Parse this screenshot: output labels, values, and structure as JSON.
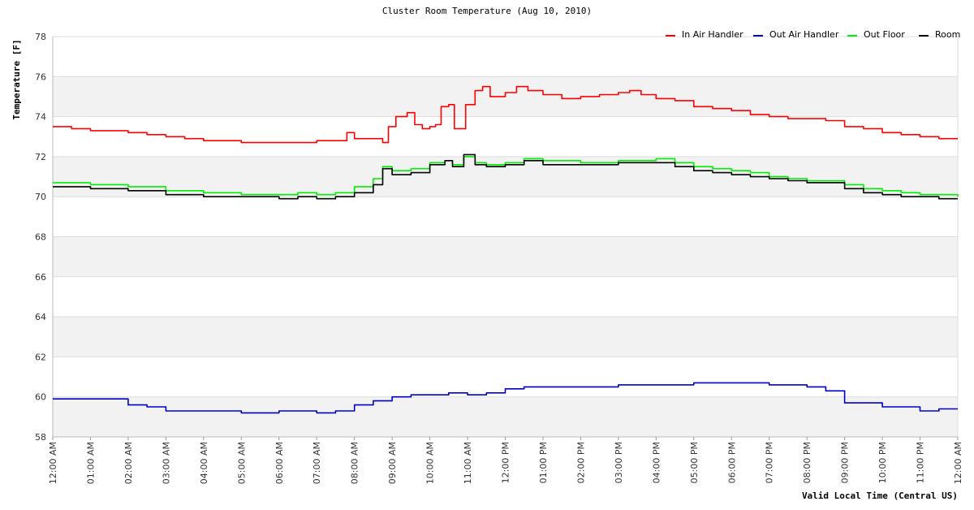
{
  "chart_data": {
    "type": "line",
    "title": "Cluster Room Temperature (Aug 10, 2010)",
    "xlabel": "Valid Local Time (Central US)",
    "ylabel": "Temperature [F]",
    "ylim": [
      58,
      78
    ],
    "yticks": [
      58,
      60,
      62,
      64,
      66,
      68,
      70,
      72,
      74,
      76,
      78
    ],
    "xlim": [
      0,
      24
    ],
    "xticks": [
      {
        "hour": 0,
        "label": "12:00 AM"
      },
      {
        "hour": 1,
        "label": "01:00 AM"
      },
      {
        "hour": 2,
        "label": "02:00 AM"
      },
      {
        "hour": 3,
        "label": "03:00 AM"
      },
      {
        "hour": 4,
        "label": "04:00 AM"
      },
      {
        "hour": 5,
        "label": "05:00 AM"
      },
      {
        "hour": 6,
        "label": "06:00 AM"
      },
      {
        "hour": 7,
        "label": "07:00 AM"
      },
      {
        "hour": 8,
        "label": "08:00 AM"
      },
      {
        "hour": 9,
        "label": "09:00 AM"
      },
      {
        "hour": 10,
        "label": "10:00 AM"
      },
      {
        "hour": 11,
        "label": "11:00 AM"
      },
      {
        "hour": 12,
        "label": "12:00 PM"
      },
      {
        "hour": 13,
        "label": "01:00 PM"
      },
      {
        "hour": 14,
        "label": "02:00 PM"
      },
      {
        "hour": 15,
        "label": "03:00 PM"
      },
      {
        "hour": 16,
        "label": "04:00 PM"
      },
      {
        "hour": 17,
        "label": "05:00 PM"
      },
      {
        "hour": 18,
        "label": "06:00 PM"
      },
      {
        "hour": 19,
        "label": "07:00 PM"
      },
      {
        "hour": 20,
        "label": "08:00 PM"
      },
      {
        "hour": 21,
        "label": "09:00 PM"
      },
      {
        "hour": 22,
        "label": "10:00 PM"
      },
      {
        "hour": 23,
        "label": "11:00 PM"
      },
      {
        "hour": 24,
        "label": "12:00 AM"
      }
    ],
    "legend_position": "top-right",
    "grid": true,
    "series": [
      {
        "name": "In Air Handler",
        "color": "#ff0000",
        "points": [
          [
            0,
            73.5
          ],
          [
            0.5,
            73.4
          ],
          [
            1,
            73.3
          ],
          [
            1.5,
            73.3
          ],
          [
            2,
            73.2
          ],
          [
            2.5,
            73.1
          ],
          [
            3,
            73.0
          ],
          [
            3.5,
            72.9
          ],
          [
            4,
            72.8
          ],
          [
            4.5,
            72.8
          ],
          [
            5,
            72.7
          ],
          [
            5.5,
            72.7
          ],
          [
            6,
            72.7
          ],
          [
            6.5,
            72.7
          ],
          [
            7,
            72.8
          ],
          [
            7.5,
            72.8
          ],
          [
            7.8,
            73.2
          ],
          [
            8,
            72.9
          ],
          [
            8.5,
            72.9
          ],
          [
            8.75,
            72.7
          ],
          [
            8.9,
            73.5
          ],
          [
            9.1,
            74.0
          ],
          [
            9.4,
            74.2
          ],
          [
            9.6,
            73.6
          ],
          [
            9.8,
            73.4
          ],
          [
            10,
            73.5
          ],
          [
            10.15,
            73.6
          ],
          [
            10.3,
            74.5
          ],
          [
            10.5,
            74.6
          ],
          [
            10.65,
            73.4
          ],
          [
            10.8,
            73.4
          ],
          [
            10.95,
            74.6
          ],
          [
            11.2,
            75.3
          ],
          [
            11.4,
            75.5
          ],
          [
            11.6,
            75.0
          ],
          [
            12,
            75.2
          ],
          [
            12.3,
            75.5
          ],
          [
            12.6,
            75.3
          ],
          [
            13,
            75.1
          ],
          [
            13.5,
            74.9
          ],
          [
            14,
            75.0
          ],
          [
            14.5,
            75.1
          ],
          [
            15,
            75.2
          ],
          [
            15.3,
            75.3
          ],
          [
            15.6,
            75.1
          ],
          [
            16,
            74.9
          ],
          [
            16.5,
            74.8
          ],
          [
            17,
            74.5
          ],
          [
            17.5,
            74.4
          ],
          [
            18,
            74.3
          ],
          [
            18.5,
            74.1
          ],
          [
            19,
            74.0
          ],
          [
            19.5,
            73.9
          ],
          [
            20,
            73.9
          ],
          [
            20.5,
            73.8
          ],
          [
            21,
            73.5
          ],
          [
            21.5,
            73.4
          ],
          [
            22,
            73.2
          ],
          [
            22.5,
            73.1
          ],
          [
            23,
            73.0
          ],
          [
            23.5,
            72.9
          ],
          [
            24,
            72.9
          ]
        ]
      },
      {
        "name": "Out Air Handler",
        "color": "#0000cc",
        "points": [
          [
            0,
            59.9
          ],
          [
            1,
            59.9
          ],
          [
            1.5,
            59.9
          ],
          [
            2,
            59.6
          ],
          [
            2.5,
            59.5
          ],
          [
            3,
            59.3
          ],
          [
            4,
            59.3
          ],
          [
            5,
            59.2
          ],
          [
            6,
            59.3
          ],
          [
            7,
            59.2
          ],
          [
            7.5,
            59.3
          ],
          [
            8,
            59.6
          ],
          [
            8.5,
            59.8
          ],
          [
            9,
            60.0
          ],
          [
            9.5,
            60.1
          ],
          [
            10,
            60.1
          ],
          [
            10.5,
            60.2
          ],
          [
            11,
            60.1
          ],
          [
            11.5,
            60.2
          ],
          [
            12,
            60.4
          ],
          [
            12.5,
            60.5
          ],
          [
            13,
            60.5
          ],
          [
            13.5,
            60.5
          ],
          [
            14,
            60.5
          ],
          [
            14.5,
            60.5
          ],
          [
            15,
            60.6
          ],
          [
            16,
            60.6
          ],
          [
            17,
            60.7
          ],
          [
            18,
            60.7
          ],
          [
            19,
            60.6
          ],
          [
            20,
            60.5
          ],
          [
            20.5,
            60.3
          ],
          [
            21,
            59.7
          ],
          [
            21.5,
            59.7
          ],
          [
            22,
            59.5
          ],
          [
            22.5,
            59.5
          ],
          [
            23,
            59.3
          ],
          [
            23.5,
            59.4
          ],
          [
            24,
            59.4
          ]
        ]
      },
      {
        "name": "Out Floor",
        "color": "#00ee00",
        "points": [
          [
            0,
            70.7
          ],
          [
            1,
            70.6
          ],
          [
            2,
            70.5
          ],
          [
            3,
            70.3
          ],
          [
            4,
            70.2
          ],
          [
            5,
            70.1
          ],
          [
            6,
            70.1
          ],
          [
            6.5,
            70.2
          ],
          [
            7,
            70.1
          ],
          [
            7.5,
            70.2
          ],
          [
            8,
            70.5
          ],
          [
            8.5,
            70.9
          ],
          [
            8.75,
            71.5
          ],
          [
            9,
            71.3
          ],
          [
            9.5,
            71.4
          ],
          [
            10,
            71.7
          ],
          [
            10.4,
            71.8
          ],
          [
            10.6,
            71.6
          ],
          [
            10.9,
            72.0
          ],
          [
            11.2,
            71.7
          ],
          [
            11.5,
            71.6
          ],
          [
            12,
            71.7
          ],
          [
            12.5,
            71.9
          ],
          [
            13,
            71.8
          ],
          [
            14,
            71.7
          ],
          [
            15,
            71.8
          ],
          [
            16,
            71.9
          ],
          [
            16.5,
            71.7
          ],
          [
            17,
            71.5
          ],
          [
            17.5,
            71.4
          ],
          [
            18,
            71.3
          ],
          [
            18.5,
            71.2
          ],
          [
            19,
            71.0
          ],
          [
            19.5,
            70.9
          ],
          [
            20,
            70.8
          ],
          [
            20.5,
            70.8
          ],
          [
            21,
            70.6
          ],
          [
            21.5,
            70.4
          ],
          [
            22,
            70.3
          ],
          [
            22.5,
            70.2
          ],
          [
            23,
            70.1
          ],
          [
            23.5,
            70.1
          ],
          [
            24,
            70.0
          ]
        ]
      },
      {
        "name": "Room",
        "color": "#000000",
        "points": [
          [
            0,
            70.5
          ],
          [
            1,
            70.4
          ],
          [
            2,
            70.3
          ],
          [
            3,
            70.1
          ],
          [
            4,
            70.0
          ],
          [
            5,
            70.0
          ],
          [
            6,
            69.9
          ],
          [
            6.5,
            70.0
          ],
          [
            7,
            69.9
          ],
          [
            7.5,
            70.0
          ],
          [
            8,
            70.2
          ],
          [
            8.5,
            70.6
          ],
          [
            8.75,
            71.4
          ],
          [
            9,
            71.1
          ],
          [
            9.5,
            71.2
          ],
          [
            10,
            71.6
          ],
          [
            10.4,
            71.8
          ],
          [
            10.6,
            71.5
          ],
          [
            10.9,
            72.1
          ],
          [
            11.2,
            71.6
          ],
          [
            11.5,
            71.5
          ],
          [
            12,
            71.6
          ],
          [
            12.5,
            71.8
          ],
          [
            13,
            71.6
          ],
          [
            14,
            71.6
          ],
          [
            15,
            71.7
          ],
          [
            16,
            71.7
          ],
          [
            16.5,
            71.5
          ],
          [
            17,
            71.3
          ],
          [
            17.5,
            71.2
          ],
          [
            18,
            71.1
          ],
          [
            18.5,
            71.0
          ],
          [
            19,
            70.9
          ],
          [
            19.5,
            70.8
          ],
          [
            20,
            70.7
          ],
          [
            20.5,
            70.7
          ],
          [
            21,
            70.4
          ],
          [
            21.5,
            70.2
          ],
          [
            22,
            70.1
          ],
          [
            22.5,
            70.0
          ],
          [
            23,
            70.0
          ],
          [
            23.5,
            69.9
          ],
          [
            24,
            69.9
          ]
        ]
      }
    ]
  }
}
